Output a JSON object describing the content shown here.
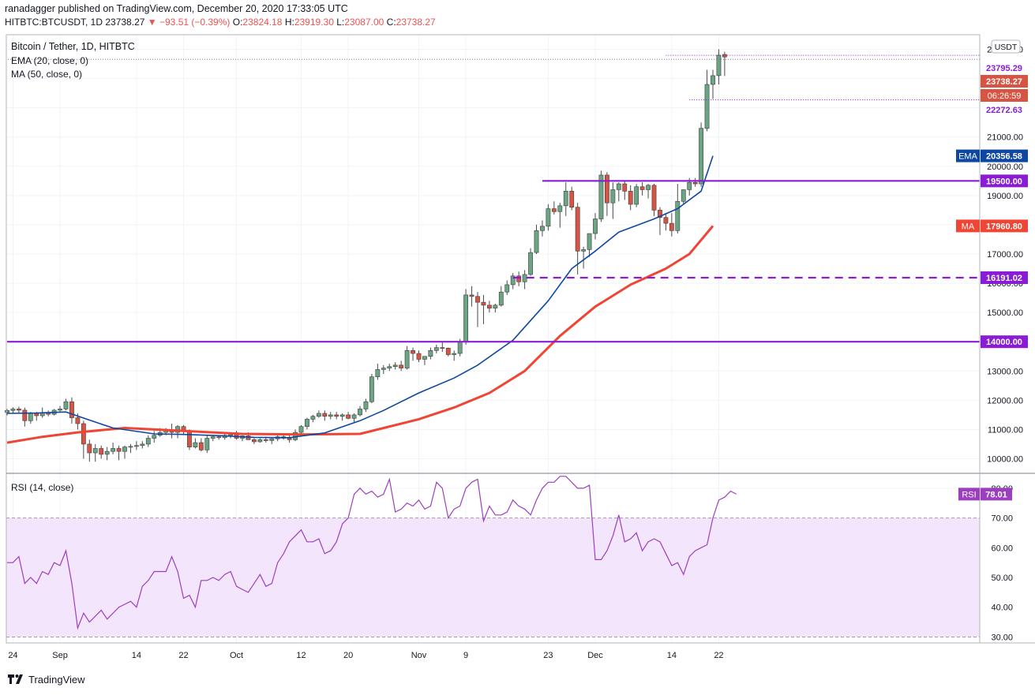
{
  "header": {
    "publisher": "ranadagger published on TradingView.com, December 20, 2020 17:33:05 UTC",
    "symbol": "HITBTC:BTCUSDT, 1D",
    "last": "23738.27",
    "change": "−93.51 (−0.39%)",
    "o_label": "O:",
    "o": "23824.18",
    "h_label": "H:",
    "h": "23919.30",
    "l_label": "L:",
    "l": "23087.00",
    "c_label": "C:",
    "c": "23738.27"
  },
  "legend": {
    "title": "Bitcoin / Tether, 1D, HITBTC",
    "ema": "EMA (20, close, 0)",
    "ma": "MA (50, close, 0)",
    "rsi": "RSI (14, close)"
  },
  "currency_badge": "USDT",
  "footer": {
    "brand": "TradingView"
  },
  "colors": {
    "up": "#6ba583",
    "down": "#d75442",
    "ema": "#0d47a1",
    "ma": "#ef4534",
    "level": "#8a1cd6",
    "rsi": "#9c3fbf",
    "rsi_band": "#f3e5fc"
  },
  "chart_data": [
    {
      "type": "candlestick",
      "title": "Bitcoin / Tether, 1D, HITBTC",
      "x_start": "2020-08-23",
      "ylim": [
        9500,
        24500
      ],
      "y_ticks": [
        10000,
        11000,
        12000,
        13000,
        14000,
        15000,
        16000,
        17000,
        18000,
        19000,
        20000,
        21000,
        22000,
        23000,
        24000
      ],
      "x_ticks": [
        {
          "label": "24",
          "date": "2020-08-24"
        },
        {
          "label": "Sep",
          "date": "2020-09-01"
        },
        {
          "label": "14",
          "date": "2020-09-14"
        },
        {
          "label": "22",
          "date": "2020-09-22"
        },
        {
          "label": "Oct",
          "date": "2020-10-01"
        },
        {
          "label": "12",
          "date": "2020-10-12"
        },
        {
          "label": "20",
          "date": "2020-10-20"
        },
        {
          "label": "Nov",
          "date": "2020-11-01"
        },
        {
          "label": "9",
          "date": "2020-11-09"
        },
        {
          "label": "23",
          "date": "2020-11-23"
        },
        {
          "label": "Dec",
          "date": "2020-12-01"
        },
        {
          "label": "14",
          "date": "2020-12-14"
        },
        {
          "label": "22",
          "date": "2020-12-22"
        }
      ],
      "ohlc": [
        [
          11580,
          11700,
          11480,
          11650
        ],
        [
          11650,
          11760,
          11550,
          11700
        ],
        [
          11700,
          11780,
          11570,
          11660
        ],
        [
          11660,
          11750,
          11100,
          11300
        ],
        [
          11300,
          11600,
          11200,
          11550
        ],
        [
          11550,
          11600,
          11300,
          11470
        ],
        [
          11470,
          11750,
          11400,
          11580
        ],
        [
          11580,
          11650,
          11450,
          11520
        ],
        [
          11520,
          11700,
          11480,
          11660
        ],
        [
          11660,
          11800,
          11580,
          11700
        ],
        [
          11700,
          12050,
          11650,
          11950
        ],
        [
          11950,
          12100,
          11200,
          11400
        ],
        [
          11400,
          11550,
          11000,
          11200
        ],
        [
          11200,
          11300,
          10000,
          10500
        ],
        [
          10500,
          10650,
          9900,
          10200
        ],
        [
          10200,
          10500,
          9900,
          10350
        ],
        [
          10350,
          10450,
          10000,
          10150
        ],
        [
          10150,
          10400,
          9950,
          10250
        ],
        [
          10250,
          10550,
          10150,
          10350
        ],
        [
          10350,
          10450,
          9950,
          10250
        ],
        [
          10250,
          10450,
          10000,
          10400
        ],
        [
          10400,
          10500,
          10200,
          10420
        ],
        [
          10420,
          10600,
          10300,
          10450
        ],
        [
          10450,
          10600,
          10350,
          10500
        ],
        [
          10500,
          10800,
          10400,
          10700
        ],
        [
          10700,
          10950,
          10550,
          10800
        ],
        [
          10800,
          11050,
          10750,
          10900
        ],
        [
          10900,
          11050,
          10800,
          10950
        ],
        [
          10950,
          11200,
          10700,
          10900
        ],
        [
          10900,
          11150,
          10700,
          11100
        ],
        [
          11100,
          11150,
          10850,
          10950
        ],
        [
          10950,
          11000,
          10300,
          10400
        ],
        [
          10400,
          10700,
          10350,
          10550
        ],
        [
          10550,
          10700,
          10250,
          10300
        ],
        [
          10300,
          10800,
          10200,
          10700
        ],
        [
          10700,
          10800,
          10600,
          10750
        ],
        [
          10750,
          10800,
          10650,
          10720
        ],
        [
          10720,
          10850,
          10650,
          10800
        ],
        [
          10800,
          10900,
          10700,
          10850
        ],
        [
          10850,
          10950,
          10650,
          10700
        ],
        [
          10700,
          10800,
          10600,
          10780
        ],
        [
          10780,
          10900,
          10700,
          10650
        ],
        [
          10650,
          10700,
          10500,
          10580
        ],
        [
          10580,
          10700,
          10550,
          10650
        ],
        [
          10650,
          10750,
          10550,
          10620
        ],
        [
          10620,
          10700,
          10500,
          10680
        ],
        [
          10680,
          10800,
          10600,
          10750
        ],
        [
          10750,
          10850,
          10650,
          10700
        ],
        [
          10700,
          10800,
          10550,
          10650
        ],
        [
          10650,
          11000,
          10600,
          10900
        ],
        [
          10900,
          11150,
          10800,
          11100
        ],
        [
          11100,
          11400,
          11000,
          11350
        ],
        [
          11350,
          11500,
          11250,
          11450
        ],
        [
          11450,
          11650,
          11400,
          11550
        ],
        [
          11550,
          11650,
          11300,
          11450
        ],
        [
          11450,
          11600,
          11350,
          11500
        ],
        [
          11500,
          11600,
          11350,
          11450
        ],
        [
          11450,
          11550,
          11300,
          11500
        ],
        [
          11500,
          11600,
          11350,
          11380
        ],
        [
          11380,
          11550,
          11250,
          11500
        ],
        [
          11500,
          11800,
          11450,
          11700
        ],
        [
          11700,
          12050,
          11600,
          11950
        ],
        [
          11950,
          12900,
          11900,
          12800
        ],
        [
          12800,
          13250,
          12700,
          13050
        ],
        [
          13050,
          13200,
          12900,
          13100
        ],
        [
          13100,
          13250,
          13000,
          13150
        ],
        [
          13150,
          13300,
          13050,
          13200
        ],
        [
          13200,
          13350,
          13000,
          13100
        ],
        [
          13100,
          13850,
          13050,
          13700
        ],
        [
          13700,
          13800,
          13350,
          13600
        ],
        [
          13600,
          13700,
          13300,
          13400
        ],
        [
          13400,
          13500,
          13200,
          13500
        ],
        [
          13500,
          13800,
          13400,
          13700
        ],
        [
          13700,
          13900,
          13600,
          13800
        ],
        [
          13800,
          14000,
          13650,
          13780
        ],
        [
          13780,
          13800,
          13500,
          13560
        ],
        [
          13560,
          13700,
          13350,
          13600
        ],
        [
          13600,
          14100,
          13500,
          14000
        ],
        [
          14000,
          15800,
          13900,
          15600
        ],
        [
          15600,
          15900,
          15200,
          15550
        ],
        [
          15550,
          15700,
          14500,
          15350
        ],
        [
          15350,
          15600,
          14600,
          15250
        ],
        [
          15250,
          15400,
          15000,
          15150
        ],
        [
          15150,
          15300,
          15000,
          15250
        ],
        [
          15250,
          15900,
          15200,
          15700
        ],
        [
          15700,
          16100,
          15600,
          15950
        ],
        [
          15950,
          16350,
          15800,
          16250
        ],
        [
          16250,
          16400,
          15900,
          16050
        ],
        [
          16050,
          16450,
          15800,
          16300
        ],
        [
          16300,
          17200,
          16250,
          17050
        ],
        [
          17050,
          18000,
          17000,
          17800
        ],
        [
          17800,
          18150,
          17600,
          17950
        ],
        [
          17950,
          18700,
          17800,
          18550
        ],
        [
          18550,
          18800,
          18350,
          18450
        ],
        [
          18450,
          18750,
          17900,
          18650
        ],
        [
          18650,
          19450,
          18300,
          19150
        ],
        [
          19150,
          19300,
          18500,
          18600
        ],
        [
          18600,
          18750,
          16300,
          17100
        ],
        [
          17100,
          17250,
          16500,
          17150
        ],
        [
          17150,
          17700,
          16900,
          17700
        ],
        [
          17700,
          18400,
          17500,
          18200
        ],
        [
          18200,
          19850,
          18100,
          19700
        ],
        [
          19700,
          19800,
          18300,
          18750
        ],
        [
          18750,
          19450,
          18200,
          19200
        ],
        [
          19200,
          19450,
          18800,
          19400
        ],
        [
          19400,
          19500,
          18850,
          19150
        ],
        [
          19150,
          19350,
          18500,
          18700
        ],
        [
          18700,
          19400,
          18600,
          19300
        ],
        [
          19300,
          19450,
          19000,
          19200
        ],
        [
          19200,
          19400,
          18900,
          19350
        ],
        [
          19350,
          19400,
          18300,
          18500
        ],
        [
          18500,
          18600,
          17650,
          18250
        ],
        [
          18250,
          18400,
          17800,
          18050
        ],
        [
          18050,
          18400,
          17600,
          17800
        ],
        [
          17800,
          19400,
          17700,
          18800
        ],
        [
          18800,
          19200,
          18700,
          19200
        ],
        [
          19200,
          19600,
          19000,
          19450
        ],
        [
          19450,
          19600,
          19300,
          19400
        ],
        [
          19400,
          21500,
          19300,
          21300
        ],
        [
          21300,
          23300,
          21200,
          22800
        ],
        [
          22800,
          23300,
          22300,
          23100
        ],
        [
          23100,
          24000,
          22800,
          23800
        ],
        [
          23824.18,
          23919.3,
          23087,
          23738.27
        ]
      ],
      "ema": {
        "name": "EMA (20, close, 0)",
        "x": [
          0,
          5,
          10,
          14,
          18,
          25,
          30,
          36,
          42,
          48,
          54,
          60,
          64,
          70,
          76,
          80,
          86,
          92,
          96,
          100,
          104,
          110,
          114,
          118,
          120
        ],
        "values": [
          11550,
          11560,
          11600,
          11320,
          11050,
          10850,
          10830,
          10790,
          10730,
          10720,
          10880,
          11300,
          11650,
          12250,
          12760,
          13200,
          14050,
          15400,
          16500,
          17100,
          17750,
          18200,
          18550,
          19150,
          20356.58
        ]
      },
      "ma": {
        "name": "MA (50, close, 0)",
        "x": [
          0,
          6,
          12,
          20,
          30,
          40,
          50,
          60,
          70,
          76,
          82,
          88,
          94,
          100,
          106,
          112,
          116,
          120
        ],
        "values": [
          10550,
          10750,
          10900,
          11050,
          10950,
          10850,
          10830,
          10850,
          11350,
          11750,
          12250,
          13000,
          14200,
          15200,
          15950,
          16500,
          17000,
          17960.8
        ]
      },
      "levels": [
        {
          "label": "19500.00",
          "value": 19500,
          "from": "2020-11-22",
          "style": "solid"
        },
        {
          "label": "16191.02",
          "value": 16191.02,
          "from": "2020-11-17",
          "style": "dashed"
        },
        {
          "label": "14000.00",
          "value": 14000,
          "from": "2020-08-23",
          "style": "solid"
        }
      ],
      "price_labels": [
        {
          "label": "23795.29",
          "value": 23795.29,
          "kind": "high"
        },
        {
          "label": "23738.27",
          "value": 23738.27,
          "kind": "last"
        },
        {
          "label": "06:26:59",
          "kind": "countdown"
        },
        {
          "label": "22272.63",
          "value": 22272.63,
          "kind": "low"
        },
        {
          "label": "20356.58",
          "value": 20356.58,
          "tag": "EMA"
        },
        {
          "label": "17960.80",
          "value": 17960.8,
          "tag": "MA"
        }
      ]
    },
    {
      "type": "line",
      "title": "RSI (14, close)",
      "ylim": [
        28,
        85
      ],
      "y_ticks": [
        30,
        40,
        50,
        60,
        70,
        80
      ],
      "band": [
        30,
        70
      ],
      "series": [
        {
          "name": "RSI",
          "last": "78.01",
          "values": [
            55,
            55,
            57,
            48,
            50,
            48,
            52,
            51,
            55,
            54,
            59,
            48,
            33,
            38,
            35,
            37,
            39,
            36,
            38,
            40,
            41,
            42,
            40,
            47,
            49,
            52,
            52,
            52,
            57,
            52,
            43,
            44,
            40,
            49,
            49,
            50,
            49,
            51,
            52,
            47,
            46,
            45,
            48,
            51,
            47,
            48,
            55,
            58,
            62,
            64,
            66,
            62,
            62,
            63,
            58,
            59,
            62,
            68,
            70,
            78,
            80,
            78,
            79,
            77,
            78,
            83,
            72,
            73,
            75,
            74,
            76,
            73,
            74,
            82,
            80,
            70,
            73,
            74,
            80,
            82,
            83,
            69,
            74,
            71,
            71,
            72,
            76,
            74,
            73,
            71,
            76,
            80,
            82,
            82,
            84,
            84,
            82,
            80,
            80,
            81,
            56,
            56,
            59,
            64,
            71,
            62,
            63,
            65,
            59,
            62,
            63,
            62,
            58,
            54,
            55,
            51,
            57,
            59,
            60,
            61,
            70,
            76,
            77,
            79,
            78.01
          ]
        }
      ]
    }
  ]
}
